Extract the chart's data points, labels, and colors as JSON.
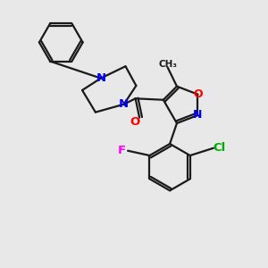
{
  "bg_color": "#e8e8e8",
  "bond_color": "#1a1a1a",
  "N_color": "#0000ff",
  "O_color": "#ff0000",
  "Cl_color": "#00aa00",
  "F_color": "#ff00ff",
  "bond_width": 1.6,
  "figsize": [
    3.0,
    3.0
  ],
  "dpi": 100,
  "xlim": [
    0,
    10
  ],
  "ylim": [
    0,
    10
  ]
}
